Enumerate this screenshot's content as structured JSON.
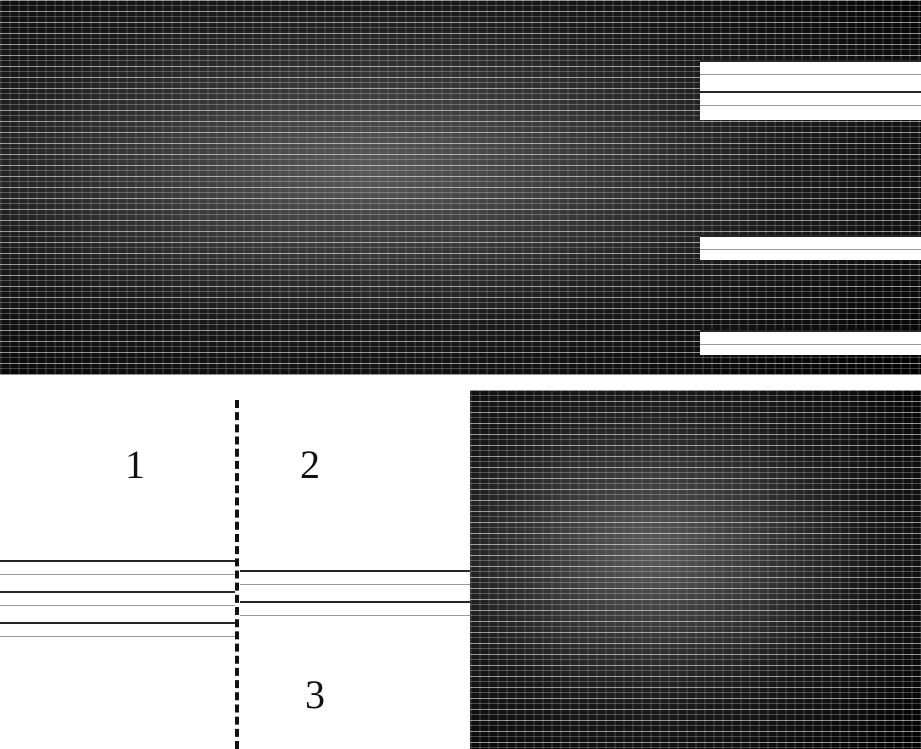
{
  "panels": [
    {
      "label": "1"
    },
    {
      "label": "2"
    },
    {
      "label": "3"
    }
  ]
}
